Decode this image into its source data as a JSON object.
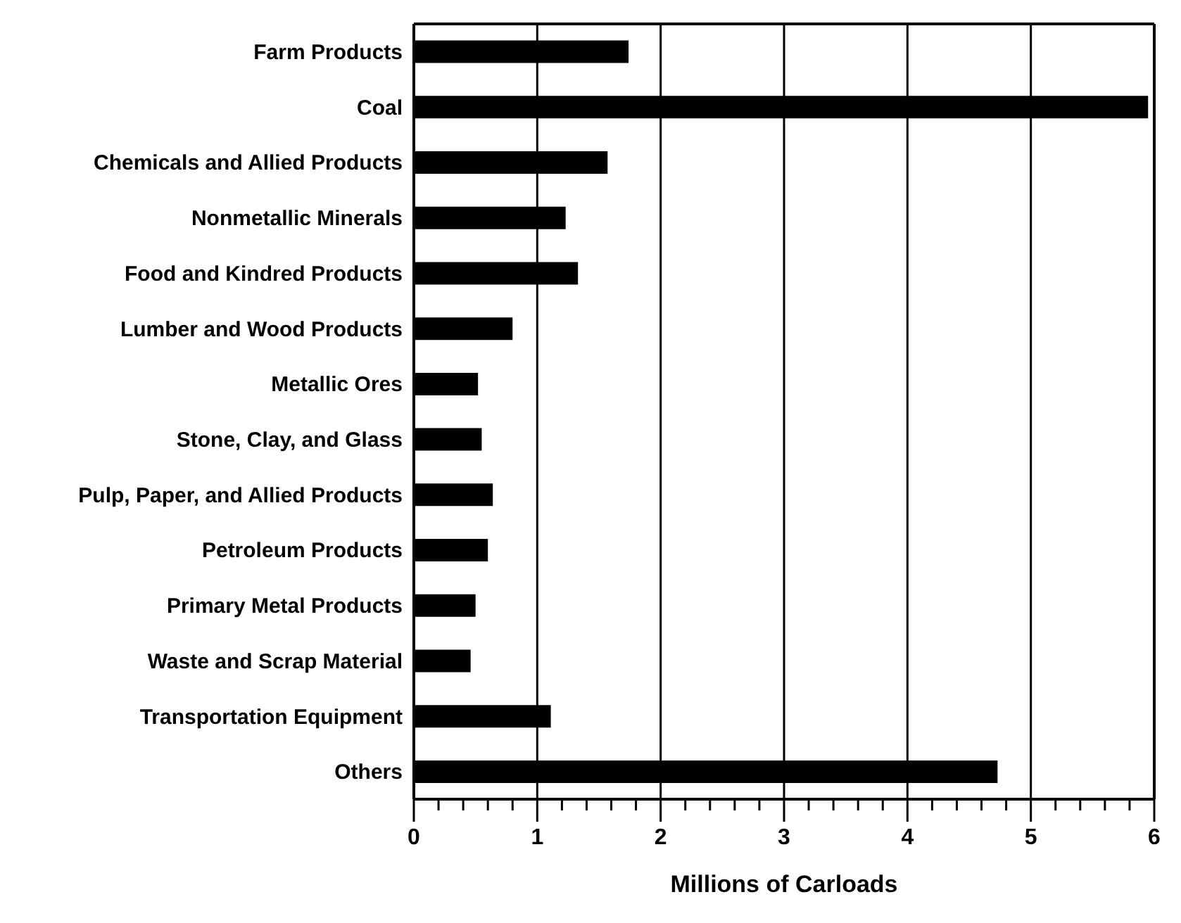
{
  "chart_data": {
    "type": "bar",
    "orientation": "horizontal",
    "xlabel": "Millions of Carloads",
    "categories": [
      "Farm Products",
      "Coal",
      "Chemicals and Allied Products",
      "Nonmetallic Minerals",
      "Food and Kindred Products",
      "Lumber and Wood Products",
      "Metallic Ores",
      "Stone, Clay, and Glass",
      "Pulp, Paper, and Allied Products",
      "Petroleum Products",
      "Primary Metal Products",
      "Waste and Scrap Material",
      "Transportation Equipment",
      "Others"
    ],
    "values": [
      1.74,
      5.95,
      1.57,
      1.23,
      1.33,
      0.8,
      0.52,
      0.55,
      0.64,
      0.6,
      0.5,
      0.46,
      1.11,
      4.73
    ],
    "color": "#000000",
    "xlim": [
      0,
      6
    ],
    "xticks": [
      0,
      {
        "value": 0.2,
        "label": null
      },
      {
        "value": 0.4,
        "label": null
      },
      {
        "value": 0.6,
        "label": null
      },
      {
        "value": 0.8,
        "label": null
      },
      1,
      {
        "value": 1.2,
        "label": null
      },
      {
        "value": 1.4,
        "label": null
      },
      {
        "value": 1.6,
        "label": null
      },
      {
        "value": 1.8,
        "label": null
      },
      2,
      {
        "value": 2.2,
        "label": null
      },
      {
        "value": 2.4,
        "label": null
      },
      {
        "value": 2.6,
        "label": null
      },
      {
        "value": 2.8,
        "label": null
      },
      3,
      {
        "value": 3.2,
        "label": null
      },
      {
        "value": 3.4,
        "label": null
      },
      {
        "value": 3.6,
        "label": null
      },
      {
        "value": 3.8,
        "label": null
      },
      4,
      {
        "value": 4.2,
        "label": null
      },
      {
        "value": 4.4,
        "label": null
      },
      {
        "value": 4.6,
        "label": null
      },
      {
        "value": 4.8,
        "label": null
      },
      5,
      {
        "value": 5.2,
        "label": null
      },
      {
        "value": 5.4,
        "label": null
      },
      {
        "value": 5.6,
        "label": null
      },
      {
        "value": 5.8,
        "label": null
      },
      6
    ],
    "grid": "x"
  }
}
